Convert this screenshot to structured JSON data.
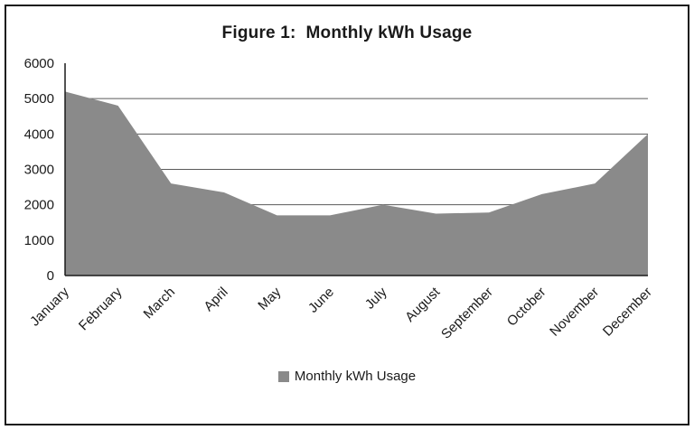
{
  "figure": {
    "title": "Figure 1:  Monthly kWh Usage",
    "legend_label": "Monthly kWh Usage"
  },
  "chart_data": {
    "type": "area",
    "title": "Figure 1:  Monthly kWh Usage",
    "categories": [
      "January",
      "February",
      "March",
      "April",
      "May",
      "June",
      "July",
      "August",
      "September",
      "October",
      "November",
      "December"
    ],
    "series": [
      {
        "name": "Monthly kWh Usage",
        "values": [
          5200,
          4800,
          2600,
          2350,
          1700,
          1700,
          2000,
          1750,
          1780,
          2300,
          2600,
          4000
        ]
      }
    ],
    "xlabel": "",
    "ylabel": "",
    "ylim": [
      0,
      6000
    ],
    "ytick_interval": 1000,
    "ytick_labels": [
      "0",
      "1000",
      "2000",
      "3000",
      "4000",
      "5000",
      "6000"
    ],
    "grid": true,
    "legend_position": "bottom",
    "x_label_rotation_deg": -45,
    "colors": {
      "area_fill": "#8a8a8a",
      "gridline": "#5a5a5a",
      "axis": "#1a1a1a",
      "text": "#1a1a1a",
      "border": "#1a1a1a"
    }
  }
}
